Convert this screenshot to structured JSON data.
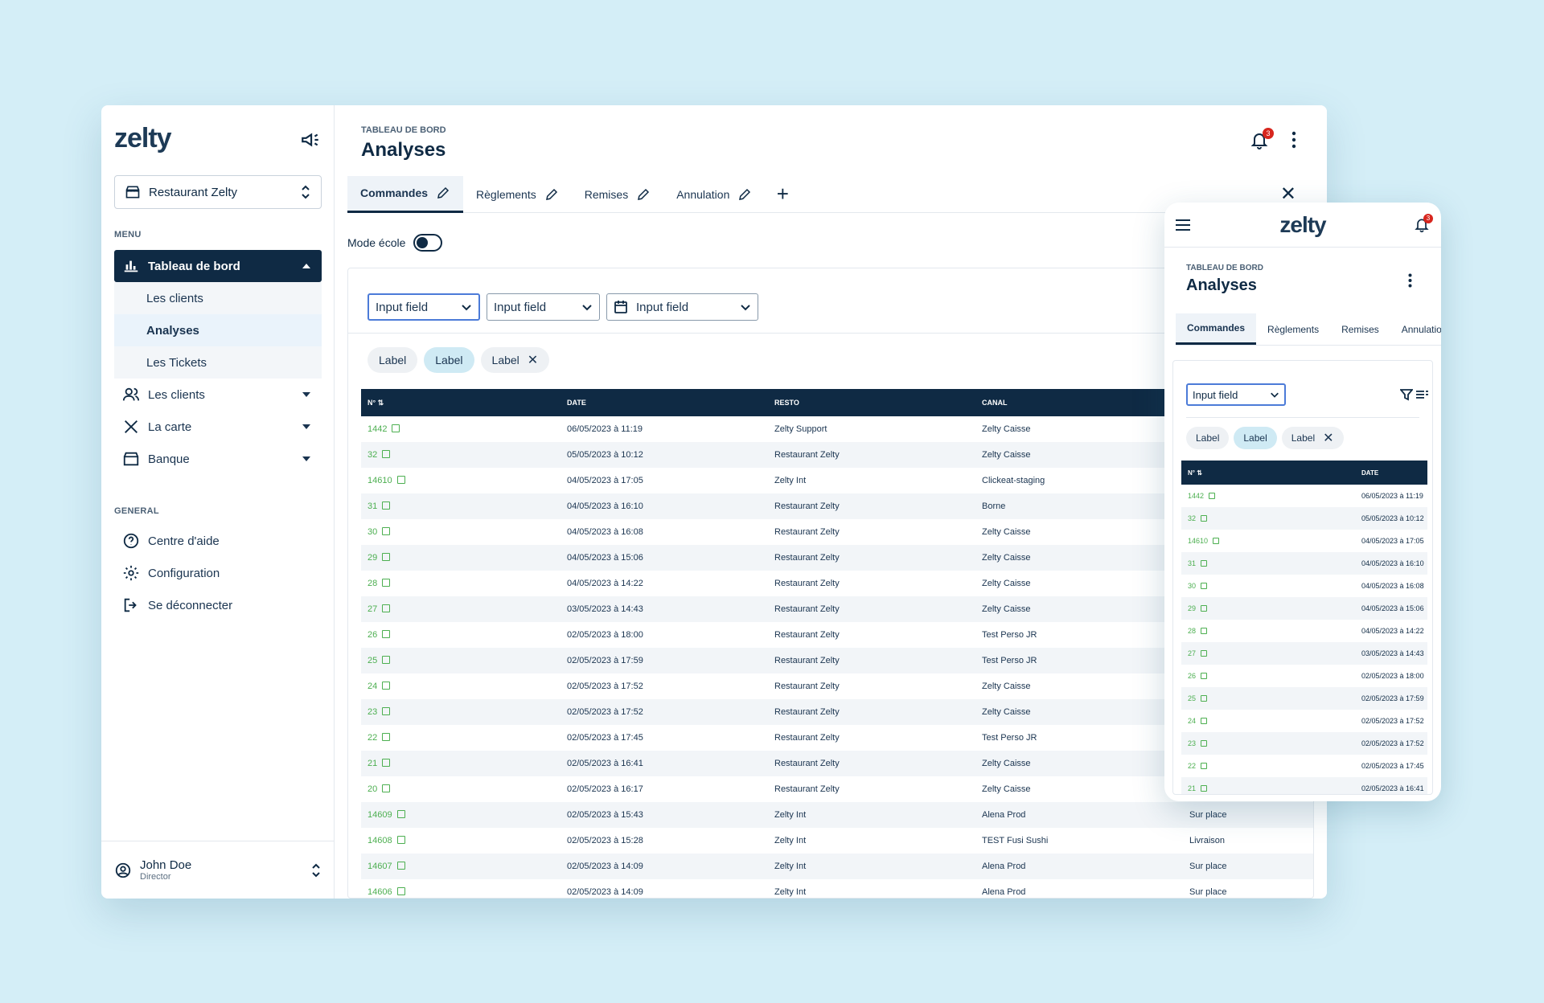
{
  "sidebar": {
    "logo": "zelty",
    "restaurant": "Restaurant Zelty",
    "menu_label": "MENU",
    "dashboard": "Tableau de bord",
    "dashboard_sub": [
      "Les clients",
      "Analyses",
      "Les Tickets"
    ],
    "nav": [
      "Les clients",
      "La carte",
      "Banque"
    ],
    "general_label": "GENERAL",
    "general": [
      "Centre d'aide",
      "Configuration",
      "Se déconnecter"
    ],
    "user_name": "John Doe",
    "user_role": "Director"
  },
  "header": {
    "breadcrumb": "TABLEAU DE BORD",
    "title": "Analyses",
    "notifications": "3"
  },
  "tabs": [
    "Commandes",
    "Règlements",
    "Remises",
    "Annulation"
  ],
  "mode_label": "Mode école",
  "filters": [
    "Input field",
    "Input field",
    "Input field"
  ],
  "chips": [
    "Label",
    "Label",
    "Label"
  ],
  "table": {
    "headers": [
      "N°",
      "DATE",
      "RESTO",
      "CANAL",
      ""
    ],
    "rows": [
      [
        "1442",
        "06/05/2023 à 11:19",
        "Zelty Support",
        "Zelty Caisse",
        ""
      ],
      [
        "32",
        "05/05/2023 à 10:12",
        "Restaurant Zelty",
        "Zelty Caisse",
        ""
      ],
      [
        "14610",
        "04/05/2023 à 17:05",
        "Zelty Int",
        "Clickeat-staging",
        ""
      ],
      [
        "31",
        "04/05/2023 à 16:10",
        "Restaurant Zelty",
        "Borne",
        ""
      ],
      [
        "30",
        "04/05/2023 à 16:08",
        "Restaurant Zelty",
        "Zelty Caisse",
        ""
      ],
      [
        "29",
        "04/05/2023 à 15:06",
        "Restaurant Zelty",
        "Zelty Caisse",
        ""
      ],
      [
        "28",
        "04/05/2023 à 14:22",
        "Restaurant Zelty",
        "Zelty Caisse",
        ""
      ],
      [
        "27",
        "03/05/2023 à 14:43",
        "Restaurant Zelty",
        "Zelty Caisse",
        ""
      ],
      [
        "26",
        "02/05/2023 à 18:00",
        "Restaurant Zelty",
        "Test Perso JR",
        ""
      ],
      [
        "25",
        "02/05/2023 à 17:59",
        "Restaurant Zelty",
        "Test Perso JR",
        ""
      ],
      [
        "24",
        "02/05/2023 à 17:52",
        "Restaurant Zelty",
        "Zelty Caisse",
        ""
      ],
      [
        "23",
        "02/05/2023 à 17:52",
        "Restaurant Zelty",
        "Zelty Caisse",
        ""
      ],
      [
        "22",
        "02/05/2023 à 17:45",
        "Restaurant Zelty",
        "Test Perso JR",
        ""
      ],
      [
        "21",
        "02/05/2023 à 16:41",
        "Restaurant Zelty",
        "Zelty Caisse",
        ""
      ],
      [
        "20",
        "02/05/2023 à 16:17",
        "Restaurant Zelty",
        "Zelty Caisse",
        ""
      ],
      [
        "14609",
        "02/05/2023 à 15:43",
        "Zelty Int",
        "Alena Prod",
        "Sur place"
      ],
      [
        "14608",
        "02/05/2023 à 15:28",
        "Zelty Int",
        "TEST Fusi Sushi",
        "Livraison"
      ],
      [
        "14607",
        "02/05/2023 à 14:09",
        "Zelty Int",
        "Alena Prod",
        "Sur place"
      ],
      [
        "14606",
        "02/05/2023 à 14:09",
        "Zelty Int",
        "Alena Prod",
        "Sur place"
      ]
    ]
  },
  "mobile": {
    "logo": "zelty",
    "notifications": "3",
    "breadcrumb": "TABLEAU DE BORD",
    "title": "Analyses",
    "tabs": [
      "Commandes",
      "Règlements",
      "Remises",
      "Annulation"
    ],
    "filter": "Input field",
    "chips": [
      "Label",
      "Label",
      "Label"
    ],
    "headers": [
      "N°",
      "DATE"
    ],
    "rows": [
      [
        "1442",
        "06/05/2023 à 11:19"
      ],
      [
        "32",
        "05/05/2023 à 10:12"
      ],
      [
        "14610",
        "04/05/2023 à 17:05"
      ],
      [
        "31",
        "04/05/2023 à 16:10"
      ],
      [
        "30",
        "04/05/2023 à 16:08"
      ],
      [
        "29",
        "04/05/2023 à 15:06"
      ],
      [
        "28",
        "04/05/2023 à 14:22"
      ],
      [
        "27",
        "03/05/2023 à 14:43"
      ],
      [
        "26",
        "02/05/2023 à 18:00"
      ],
      [
        "25",
        "02/05/2023 à 17:59"
      ],
      [
        "24",
        "02/05/2023 à 17:52"
      ],
      [
        "23",
        "02/05/2023 à 17:52"
      ],
      [
        "22",
        "02/05/2023 à 17:45"
      ],
      [
        "21",
        "02/05/2023 à 16:41"
      ]
    ]
  },
  "colors": {
    "navy": "#0f2a44",
    "green": "#4caf50",
    "accent_blue": "#4c7bd8",
    "badge_red": "#d7261e"
  }
}
